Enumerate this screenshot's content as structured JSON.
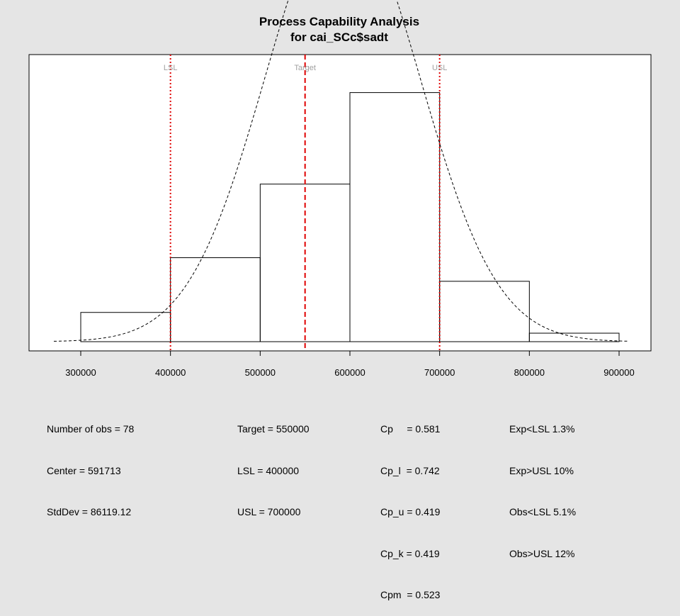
{
  "chart_data": {
    "type": "bar",
    "title": [
      "Process Capability Analysis",
      "for cai_SCc$sadt"
    ],
    "xlabel": "",
    "ylabel": "",
    "xlim": [
      245000,
      915000
    ],
    "x_ticks": [
      300000,
      400000,
      500000,
      600000,
      700000,
      800000,
      900000
    ],
    "x_tick_labels": [
      "300000",
      "400000",
      "500000",
      "600000",
      "700000",
      "800000",
      "900000"
    ],
    "bins": [
      {
        "from": 300000,
        "to": 400000,
        "density": 3.1e-07
      },
      {
        "from": 400000,
        "to": 500000,
        "density": 8.9e-07
      },
      {
        "from": 500000,
        "to": 600000,
        "density": 1.67e-06
      },
      {
        "from": 600000,
        "to": 700000,
        "density": 2.64e-06
      },
      {
        "from": 700000,
        "to": 800000,
        "density": 6.4e-07
      },
      {
        "from": 800000,
        "to": 900000,
        "density": 9e-08
      }
    ],
    "ylim": [
      0,
      2.9e-06
    ],
    "normal_curve": {
      "mean": 591713,
      "sd": 86119.12,
      "x_range": [
        270000,
        910000
      ]
    },
    "spec_lines": [
      {
        "name": "LSL",
        "value": 400000,
        "style": "dotted",
        "color": "#e00000"
      },
      {
        "name": "Target",
        "value": 550000,
        "style": "dashed",
        "color": "#e00000"
      },
      {
        "name": "USL",
        "value": 700000,
        "style": "dotted",
        "color": "#e00000"
      }
    ],
    "grid": false,
    "legend": "none"
  },
  "stats": {
    "col1": [
      "Number of obs = 78",
      "Center = 591713",
      "StdDev = 86119.12"
    ],
    "col2": [
      "Target = 550000",
      "LSL = 400000",
      "USL = 700000"
    ],
    "col3": [
      "Cp     = 0.581",
      "Cp_l  = 0.742",
      "Cp_u = 0.419",
      "Cp_k = 0.419",
      "Cpm  = 0.523"
    ],
    "col4": [
      "Exp<LSL 1.3%",
      "Exp>USL 10%",
      "Obs<LSL 5.1%",
      "Obs>USL 12%"
    ]
  }
}
